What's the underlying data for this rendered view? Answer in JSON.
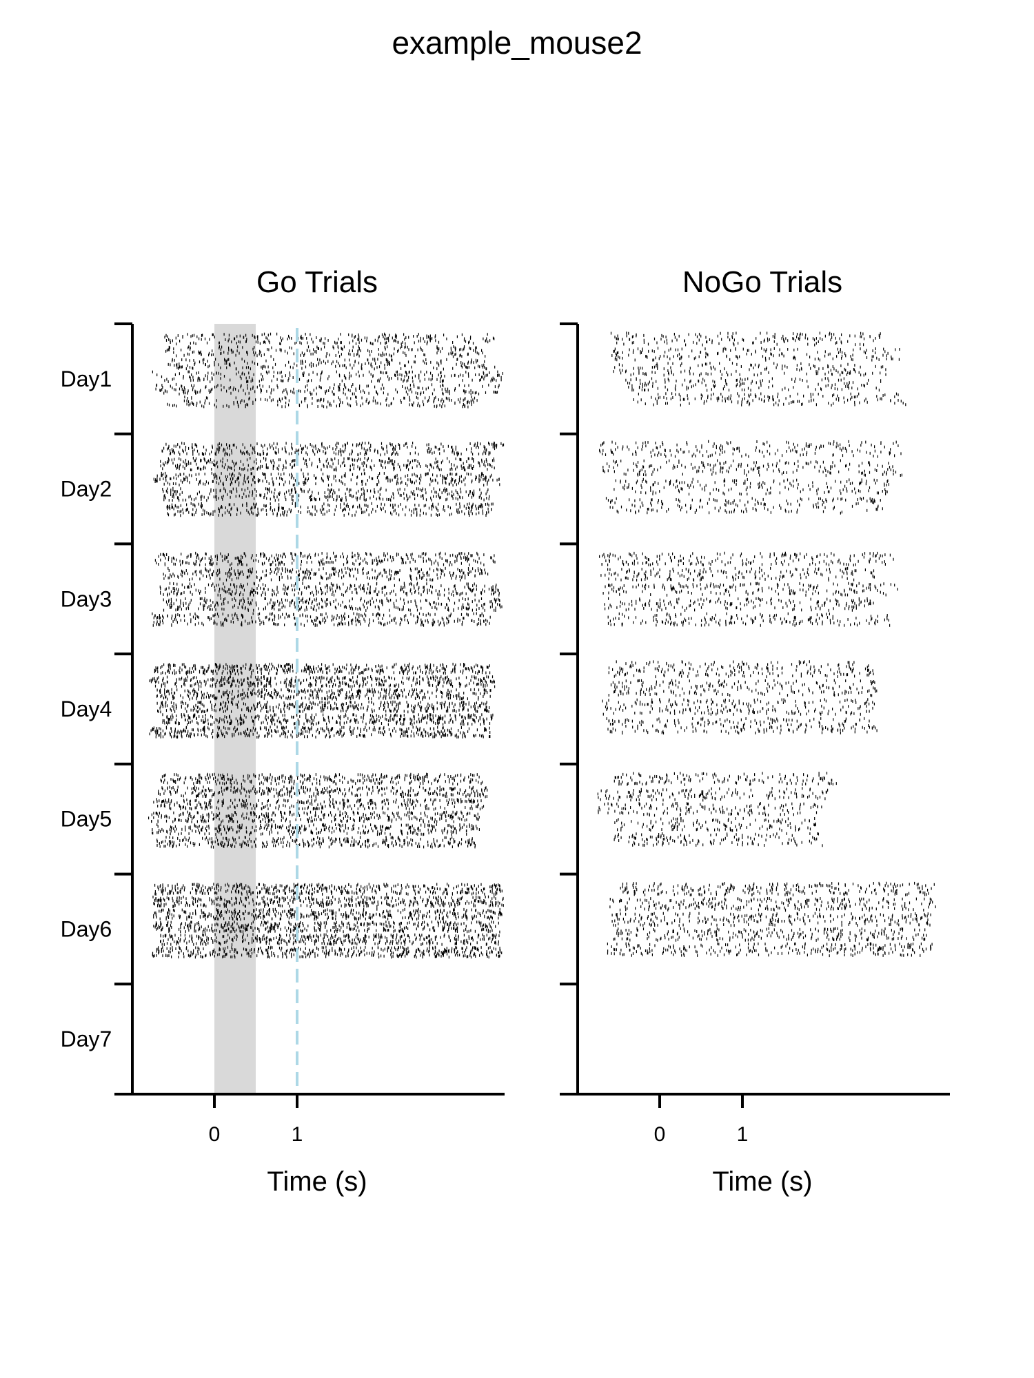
{
  "chart_data": {
    "type": "raster",
    "title": "example_mouse2",
    "y_categories": [
      "Day1",
      "Day2",
      "Day3",
      "Day4",
      "Day5",
      "Day6",
      "Day7"
    ],
    "panels": [
      {
        "name": "go",
        "title": "Go Trials",
        "xlabel": "Time (s)",
        "xticks": [
          0,
          1
        ],
        "xlim": [
          -1,
          3.5
        ],
        "stimulus_window": [
          0,
          0.5
        ],
        "stimulus_color": "#d9d9d9",
        "reference_line_x": 1,
        "reference_line_color": "#add8e6",
        "rows_per_day": [
          6,
          5,
          5,
          6,
          6,
          6,
          0
        ],
        "day_extent": [
          [
            -0.8,
            3.5
          ],
          [
            -0.8,
            3.5
          ],
          [
            -0.8,
            3.5
          ],
          [
            -0.8,
            3.4
          ],
          [
            -0.8,
            3.3
          ],
          [
            -0.8,
            3.5
          ],
          null
        ],
        "day_density": [
          0.45,
          0.7,
          0.7,
          0.85,
          0.7,
          0.85,
          0
        ]
      },
      {
        "name": "nogo",
        "title": "NoGo Trials",
        "xlabel": "Time (s)",
        "xticks": [
          0,
          1
        ],
        "xlim": [
          -1,
          3.5
        ],
        "rows_per_day": [
          5,
          4,
          5,
          4,
          5,
          5,
          0
        ],
        "day_extent": [
          [
            -0.6,
            3.0
          ],
          [
            -0.8,
            3.0
          ],
          [
            -0.8,
            2.9
          ],
          [
            -0.7,
            2.8
          ],
          [
            -0.8,
            2.2
          ],
          [
            -0.7,
            3.4
          ],
          null
        ],
        "day_density": [
          0.4,
          0.45,
          0.45,
          0.55,
          0.45,
          0.55,
          0
        ]
      }
    ],
    "grid": false,
    "legend": "none"
  },
  "colors": {
    "tick_marks": "#000000",
    "axes": "#000000"
  }
}
